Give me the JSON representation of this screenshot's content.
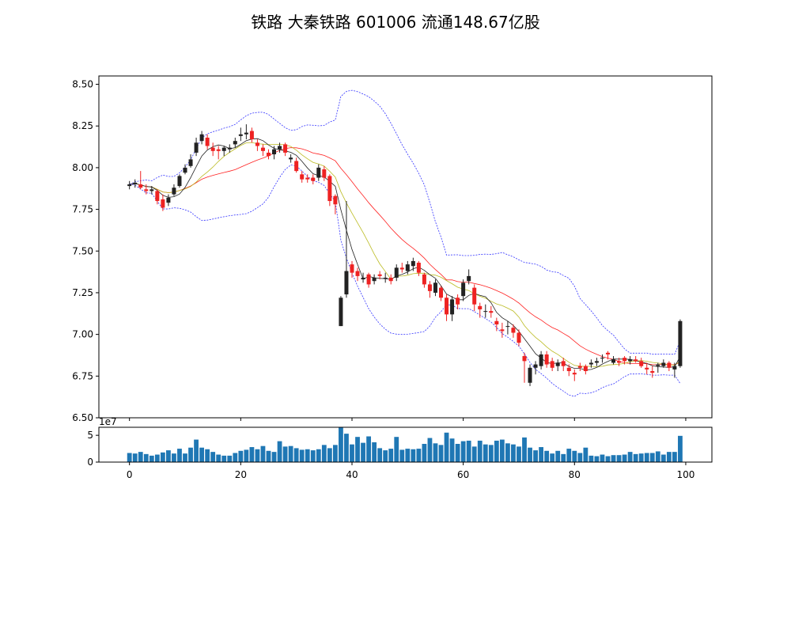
{
  "chart_data": [
    {
      "type": "candlestick",
      "title": "铁路 大秦铁路 601006 流通148.67亿股",
      "xlabel": "",
      "ylabel": "",
      "ylim": [
        6.5,
        8.55
      ],
      "y_ticks": [
        "6.50",
        "6.75",
        "7.00",
        "7.25",
        "7.50",
        "7.75",
        "8.00",
        "8.25",
        "8.50"
      ],
      "grid": false,
      "up_color": "#222222",
      "down_color": "#ee2222",
      "close": [
        7.9,
        7.91,
        7.88,
        7.86,
        7.87,
        7.8,
        7.76,
        7.82,
        7.88,
        7.95,
        8.0,
        8.05,
        8.15,
        8.2,
        8.13,
        8.1,
        8.1,
        8.12,
        8.12,
        8.16,
        8.2,
        8.21,
        8.17,
        8.13,
        8.1,
        8.07,
        8.11,
        8.13,
        8.09,
        8.06,
        7.98,
        7.93,
        7.93,
        7.92,
        8.0,
        7.94,
        7.8,
        7.78,
        7.22,
        7.38,
        7.37,
        7.35,
        7.34,
        7.3,
        7.34,
        7.35,
        7.34,
        7.32,
        7.4,
        7.39,
        7.42,
        7.44,
        7.37,
        7.3,
        7.26,
        7.31,
        7.22,
        7.12,
        7.21,
        7.18,
        7.31,
        7.35,
        7.18,
        7.15,
        7.14,
        7.13,
        7.06,
        7.02,
        7.05,
        7.01,
        6.95,
        6.84,
        6.8,
        6.82,
        6.88,
        6.82,
        6.8,
        6.83,
        6.81,
        6.78,
        6.76,
        6.8,
        6.78,
        6.83,
        6.84,
        6.86,
        6.88,
        6.85,
        6.83,
        6.84,
        6.85,
        6.84,
        6.81,
        6.79,
        6.77,
        6.82,
        6.83,
        6.8,
        6.81,
        7.08
      ],
      "open": [
        7.89,
        7.9,
        7.9,
        7.87,
        7.86,
        7.86,
        7.81,
        7.79,
        7.84,
        7.89,
        7.97,
        8.01,
        8.09,
        8.16,
        8.18,
        8.12,
        8.11,
        8.1,
        8.11,
        8.14,
        8.19,
        8.2,
        8.22,
        8.15,
        8.12,
        8.09,
        8.08,
        8.11,
        8.14,
        8.05,
        8.04,
        7.96,
        7.94,
        7.94,
        7.94,
        7.99,
        7.95,
        7.83,
        7.05,
        7.24,
        7.42,
        7.38,
        7.33,
        7.36,
        7.32,
        7.36,
        7.34,
        7.34,
        7.34,
        7.4,
        7.38,
        7.41,
        7.43,
        7.36,
        7.3,
        7.25,
        7.28,
        7.22,
        7.12,
        7.22,
        7.23,
        7.32,
        7.28,
        7.17,
        7.14,
        7.14,
        7.08,
        7.03,
        7.05,
        7.04,
        7.01,
        6.87,
        6.71,
        6.8,
        6.81,
        6.88,
        6.84,
        6.81,
        6.84,
        6.8,
        6.77,
        6.81,
        6.81,
        6.82,
        6.83,
        6.86,
        6.89,
        6.83,
        6.84,
        6.86,
        6.84,
        6.85,
        6.84,
        6.8,
        6.78,
        6.81,
        6.81,
        6.83,
        6.79,
        6.81
      ],
      "high": [
        7.92,
        7.93,
        7.98,
        7.9,
        7.89,
        7.87,
        7.84,
        7.84,
        7.9,
        7.96,
        8.02,
        8.08,
        8.18,
        8.22,
        8.2,
        8.15,
        8.13,
        8.13,
        8.14,
        8.18,
        8.24,
        8.26,
        8.24,
        8.17,
        8.14,
        8.11,
        8.13,
        8.15,
        8.15,
        8.08,
        8.06,
        7.98,
        7.96,
        7.96,
        8.02,
        8.01,
        7.96,
        7.84,
        7.23,
        7.8,
        7.44,
        7.4,
        7.37,
        7.37,
        7.36,
        7.38,
        7.37,
        7.36,
        7.42,
        7.43,
        7.44,
        7.46,
        7.44,
        7.37,
        7.32,
        7.33,
        7.29,
        7.24,
        7.23,
        7.24,
        7.33,
        7.39,
        7.3,
        7.19,
        7.18,
        7.17,
        7.1,
        7.07,
        7.08,
        7.06,
        7.03,
        6.89,
        6.82,
        6.84,
        6.9,
        6.9,
        6.86,
        6.85,
        6.86,
        6.82,
        6.79,
        6.83,
        6.82,
        6.85,
        6.86,
        6.88,
        6.9,
        6.87,
        6.86,
        6.87,
        6.87,
        6.87,
        6.86,
        6.83,
        6.81,
        6.83,
        6.85,
        6.84,
        6.83,
        7.09
      ],
      "low": [
        7.87,
        7.88,
        7.87,
        7.84,
        7.84,
        7.78,
        7.74,
        7.77,
        7.83,
        7.88,
        7.96,
        8.0,
        8.07,
        8.14,
        8.11,
        8.07,
        8.05,
        8.07,
        8.09,
        8.12,
        8.16,
        8.17,
        8.15,
        8.1,
        8.07,
        8.05,
        8.05,
        8.09,
        8.07,
        8.03,
        7.97,
        7.91,
        7.91,
        7.9,
        7.92,
        7.92,
        7.77,
        7.72,
        7.05,
        7.22,
        7.34,
        7.32,
        7.31,
        7.28,
        7.3,
        7.33,
        7.31,
        7.3,
        7.32,
        7.37,
        7.36,
        7.38,
        7.35,
        7.28,
        7.22,
        7.23,
        7.2,
        7.08,
        7.08,
        7.15,
        7.2,
        7.3,
        7.14,
        7.1,
        7.1,
        7.1,
        7.02,
        6.98,
        7.0,
        6.98,
        6.93,
        6.71,
        6.69,
        6.76,
        6.79,
        6.8,
        6.78,
        6.78,
        6.78,
        6.75,
        6.72,
        6.78,
        6.76,
        6.8,
        6.81,
        6.83,
        6.85,
        6.82,
        6.81,
        6.82,
        6.82,
        6.83,
        6.8,
        6.76,
        6.74,
        6.77,
        6.8,
        6.78,
        6.74,
        6.8
      ]
    },
    {
      "type": "bar",
      "title": "",
      "xlabel": "",
      "ylabel": "",
      "ylim": [
        0,
        6.5
      ],
      "y_ticks": [
        "0",
        "5"
      ],
      "x_ticks": [
        "0",
        "20",
        "40",
        "60",
        "80",
        "100"
      ],
      "x_range": [
        -5.5,
        104.7
      ],
      "scale_label": "1e7",
      "bar_color": "#1f77b4",
      "values": [
        1.7,
        1.6,
        1.9,
        1.5,
        1.2,
        1.4,
        1.8,
        2.2,
        1.6,
        2.5,
        1.6,
        2.7,
        4.2,
        2.7,
        2.4,
        1.9,
        1.4,
        1.2,
        1.2,
        1.7,
        2.1,
        2.3,
        2.8,
        2.4,
        3.0,
        2.1,
        1.9,
        3.9,
        2.9,
        3.0,
        2.6,
        2.3,
        2.4,
        2.2,
        2.4,
        3.2,
        2.6,
        3.2,
        6.5,
        5.3,
        3.3,
        4.7,
        3.6,
        4.8,
        3.7,
        2.6,
        2.2,
        2.5,
        4.7,
        2.3,
        2.5,
        2.4,
        2.5,
        3.4,
        4.5,
        3.5,
        3.2,
        5.5,
        4.4,
        3.4,
        3.9,
        4.0,
        2.9,
        4.0,
        3.3,
        3.2,
        4.0,
        4.2,
        3.5,
        3.3,
        2.9,
        4.6,
        2.7,
        2.2,
        2.8,
        2.1,
        1.6,
        2.1,
        1.5,
        2.5,
        2.1,
        1.7,
        2.7,
        1.2,
        1.1,
        1.4,
        1.1,
        1.3,
        1.3,
        1.4,
        1.9,
        1.5,
        1.6,
        1.7,
        1.7,
        2.0,
        1.4,
        1.9,
        1.9,
        4.9
      ]
    }
  ]
}
